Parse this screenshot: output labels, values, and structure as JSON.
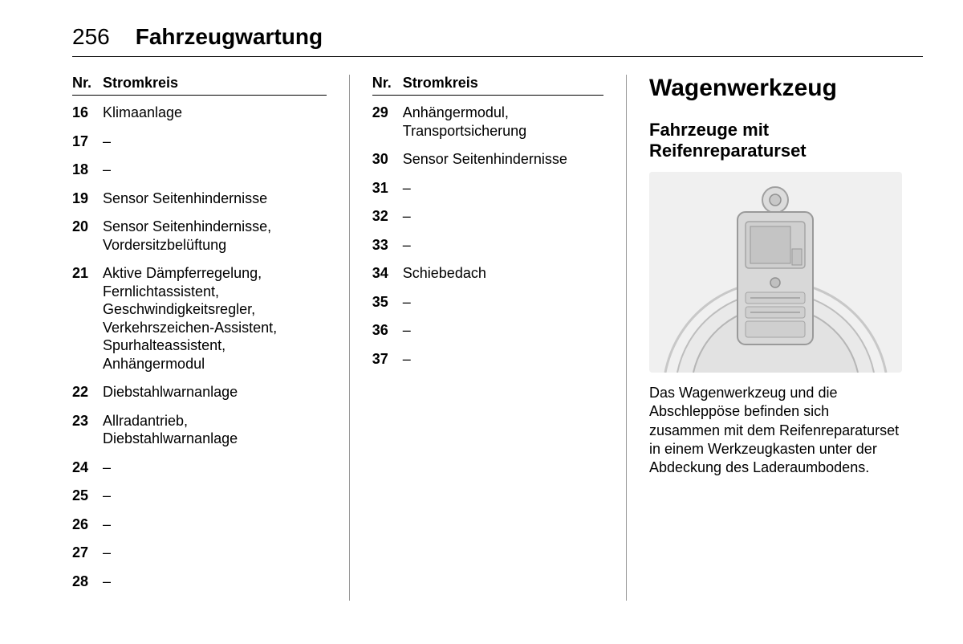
{
  "header": {
    "page_number": "256",
    "chapter": "Fahrzeugwartung"
  },
  "col1": {
    "head_nr": "Nr.",
    "head_label": "Stromkreis",
    "rows": [
      {
        "nr": "16",
        "txt": "Klimaanlage"
      },
      {
        "nr": "17",
        "txt": "–"
      },
      {
        "nr": "18",
        "txt": "–"
      },
      {
        "nr": "19",
        "txt": "Sensor Seitenhindernisse"
      },
      {
        "nr": "20",
        "txt": "Sensor Seitenhindernisse, Vordersitzbelüftung"
      },
      {
        "nr": "21",
        "txt": "Aktive Dämpferregelung, Fernlichtassistent, Geschwindigkeitsregler, Verkehrszeichen-Assistent, Spurhalteassistent, Anhängermodul"
      },
      {
        "nr": "22",
        "txt": "Diebstahlwarnanlage"
      },
      {
        "nr": "23",
        "txt": "Allradantrieb, Diebstahlwarnanlage"
      },
      {
        "nr": "24",
        "txt": "–"
      },
      {
        "nr": "25",
        "txt": "–"
      },
      {
        "nr": "26",
        "txt": "–"
      },
      {
        "nr": "27",
        "txt": "–"
      },
      {
        "nr": "28",
        "txt": "–"
      }
    ]
  },
  "col2": {
    "head_nr": "Nr.",
    "head_label": "Stromkreis",
    "rows": [
      {
        "nr": "29",
        "txt": "Anhängermodul, Transportsicherung"
      },
      {
        "nr": "30",
        "txt": "Sensor Seitenhindernisse"
      },
      {
        "nr": "31",
        "txt": "–"
      },
      {
        "nr": "32",
        "txt": "–"
      },
      {
        "nr": "33",
        "txt": "–"
      },
      {
        "nr": "34",
        "txt": "Schiebedach"
      },
      {
        "nr": "35",
        "txt": "–"
      },
      {
        "nr": "36",
        "txt": "–"
      },
      {
        "nr": "37",
        "txt": "–"
      }
    ]
  },
  "col3": {
    "heading": "Wagenwerkzeug",
    "subheading": "Fahrzeuge mit Reifenreparaturset",
    "paragraph": "Das Wagenwerkzeug und die Abschleppöse befinden sich zusammen mit dem Reifenreparaturset in einem Werkzeugkasten unter der Abdeckung des Laderaumbodens."
  },
  "figure": {
    "bg": "#f0f0f0",
    "well_stroke": "#bcbcbc",
    "well_fill": "#e6e6e6",
    "box_fill": "#d4d4d4",
    "box_stroke": "#9a9a9a",
    "detail": "#b0b0b0"
  }
}
